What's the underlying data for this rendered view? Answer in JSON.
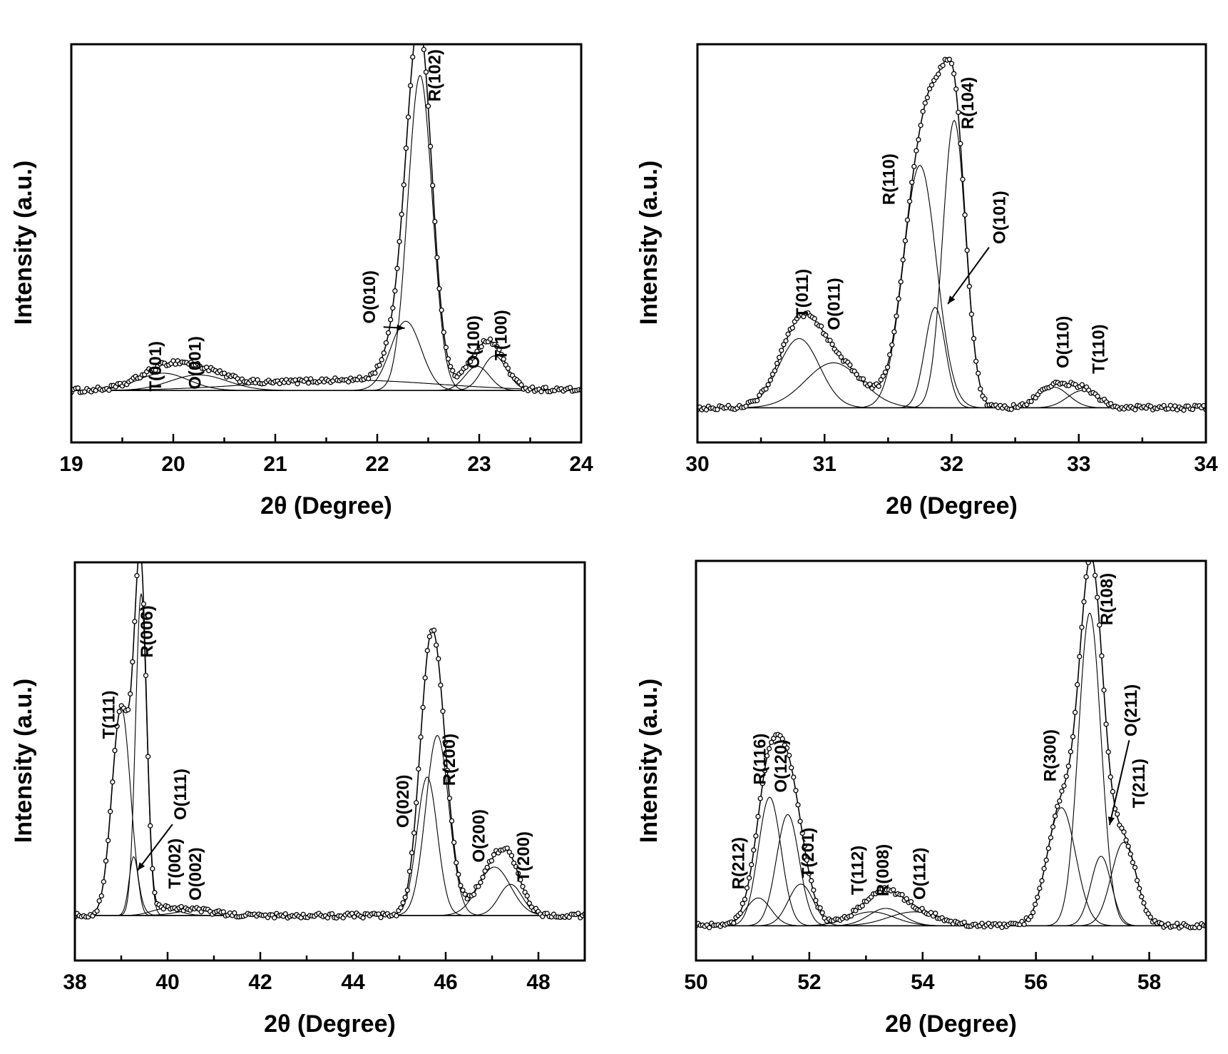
{
  "chart_data": [
    {
      "type": "line",
      "xlabel": "2θ (Degree)",
      "ylabel": "Intensity (a.u.)",
      "xlim": [
        19,
        24
      ],
      "xticks": [
        19,
        20,
        21,
        22,
        23,
        24
      ],
      "ylim": [
        0,
        1.15
      ],
      "baseline": 0.15,
      "series": [
        {
          "name": "",
          "role": "component",
          "values": [
            {
              "center": 19.9,
              "height": 0.05,
              "width": 0.25
            }
          ]
        },
        {
          "name": "",
          "role": "component",
          "values": [
            {
              "center": 20.25,
              "height": 0.045,
              "width": 0.28
            }
          ]
        },
        {
          "name": "",
          "role": "component",
          "values": [
            {
              "center": 22.28,
              "height": 0.2,
              "width": 0.15
            }
          ]
        },
        {
          "name": "",
          "role": "component",
          "values": [
            {
              "center": 22.42,
              "height": 0.91,
              "width": 0.12
            }
          ]
        },
        {
          "name": "",
          "role": "component",
          "values": [
            {
              "center": 22.98,
              "height": 0.07,
              "width": 0.12
            }
          ]
        },
        {
          "name": "",
          "role": "component",
          "values": [
            {
              "center": 23.15,
              "height": 0.1,
              "width": 0.12
            }
          ]
        },
        {
          "name": "",
          "role": "component",
          "values": [
            {
              "center": 21.7,
              "height": 0.03,
              "width": 0.9
            }
          ]
        }
      ],
      "annotations": [
        {
          "text": "T(001)",
          "x": 19.88,
          "y": 0.22
        },
        {
          "text": "O(001)",
          "x": 20.27,
          "y": 0.23
        },
        {
          "text": "O(010)",
          "x": 21.98,
          "y": 0.42,
          "arrow_to": [
            22.27,
            0.33
          ]
        },
        {
          "text": "R(102)",
          "x": 22.62,
          "y": 1.06
        },
        {
          "text": "O(100)",
          "x": 23.0,
          "y": 0.29
        },
        {
          "text": "T(100)",
          "x": 23.27,
          "y": 0.31
        }
      ]
    },
    {
      "type": "line",
      "xlabel": "2θ (Degree)",
      "ylabel": "Intensity (a.u.)",
      "xlim": [
        30,
        34
      ],
      "xticks": [
        30,
        31,
        32,
        33,
        34
      ],
      "ylim": [
        0,
        1.15
      ],
      "baseline": 0.1,
      "series": [
        {
          "name": "",
          "role": "component",
          "values": [
            {
              "center": 30.8,
              "height": 0.2,
              "width": 0.16
            }
          ]
        },
        {
          "name": "",
          "role": "component",
          "values": [
            {
              "center": 31.07,
              "height": 0.13,
              "width": 0.22
            }
          ]
        },
        {
          "name": "",
          "role": "component",
          "values": [
            {
              "center": 31.75,
              "height": 0.7,
              "width": 0.13
            }
          ]
        },
        {
          "name": "",
          "role": "component",
          "values": [
            {
              "center": 31.87,
              "height": 0.29,
              "width": 0.08
            }
          ]
        },
        {
          "name": "",
          "role": "component",
          "values": [
            {
              "center": 32.02,
              "height": 0.83,
              "width": 0.09
            }
          ]
        },
        {
          "name": "",
          "role": "component",
          "values": [
            {
              "center": 32.8,
              "height": 0.06,
              "width": 0.12
            }
          ]
        },
        {
          "name": "",
          "role": "component",
          "values": [
            {
              "center": 33.03,
              "height": 0.05,
              "width": 0.12
            }
          ]
        }
      ],
      "annotations": [
        {
          "text": "T(011)",
          "x": 30.87,
          "y": 0.43
        },
        {
          "text": "O(011)",
          "x": 31.12,
          "y": 0.4
        },
        {
          "text": "R(110)",
          "x": 31.55,
          "y": 0.76
        },
        {
          "text": "R(104)",
          "x": 32.17,
          "y": 0.98
        },
        {
          "text": "O(101)",
          "x": 32.42,
          "y": 0.65,
          "arrow_to": [
            31.97,
            0.4
          ]
        },
        {
          "text": "O(110)",
          "x": 32.92,
          "y": 0.29
        },
        {
          "text": "T(110)",
          "x": 33.2,
          "y": 0.27
        }
      ]
    },
    {
      "type": "line",
      "xlabel": "2θ (Degree)",
      "ylabel": "Intensity (a.u.)",
      "xlim": [
        38,
        49
      ],
      "xticks": [
        38,
        40,
        42,
        44,
        46,
        48
      ],
      "ylim": [
        0,
        1.15
      ],
      "baseline": 0.13,
      "series": [
        {
          "name": "",
          "role": "component",
          "values": [
            {
              "center": 39.0,
              "height": 0.6,
              "width": 0.2
            }
          ]
        },
        {
          "name": "",
          "role": "component",
          "values": [
            {
              "center": 39.27,
              "height": 0.17,
              "width": 0.1
            }
          ]
        },
        {
          "name": "",
          "role": "component",
          "values": [
            {
              "center": 39.43,
              "height": 0.93,
              "width": 0.12
            }
          ]
        },
        {
          "name": "",
          "role": "component",
          "values": [
            {
              "center": 39.95,
              "height": 0.02,
              "width": 0.3
            }
          ]
        },
        {
          "name": "",
          "role": "component",
          "values": [
            {
              "center": 40.6,
              "height": 0.015,
              "width": 0.4
            }
          ]
        },
        {
          "name": "",
          "role": "component",
          "values": [
            {
              "center": 45.6,
              "height": 0.4,
              "width": 0.22
            }
          ]
        },
        {
          "name": "",
          "role": "component",
          "values": [
            {
              "center": 45.82,
              "height": 0.52,
              "width": 0.25
            }
          ]
        },
        {
          "name": "",
          "role": "component",
          "values": [
            {
              "center": 47.05,
              "height": 0.14,
              "width": 0.35
            }
          ]
        },
        {
          "name": "",
          "role": "component",
          "values": [
            {
              "center": 47.4,
              "height": 0.09,
              "width": 0.25
            }
          ]
        }
      ],
      "annotations": [
        {
          "text": "T(111)",
          "x": 38.85,
          "y": 0.71
        },
        {
          "text": "R(006)",
          "x": 39.68,
          "y": 0.95
        },
        {
          "text": "O(111)",
          "x": 40.4,
          "y": 0.48,
          "arrow_to": [
            39.35,
            0.26
          ]
        },
        {
          "text": "T(002)",
          "x": 40.28,
          "y": 0.28
        },
        {
          "text": "O(002)",
          "x": 40.72,
          "y": 0.25
        },
        {
          "text": "O(020)",
          "x": 45.2,
          "y": 0.46
        },
        {
          "text": "R(200)",
          "x": 46.2,
          "y": 0.58
        },
        {
          "text": "O(200)",
          "x": 46.84,
          "y": 0.36
        },
        {
          "text": "T(200)",
          "x": 47.8,
          "y": 0.3
        }
      ]
    },
    {
      "type": "line",
      "xlabel": "2θ (Degree)",
      "ylabel": "Intensity (a.u.)",
      "xlim": [
        50,
        59
      ],
      "xticks": [
        50,
        52,
        54,
        56,
        58
      ],
      "ylim": [
        0,
        1.15
      ],
      "baseline": 0.1,
      "series": [
        {
          "name": "",
          "role": "component",
          "values": [
            {
              "center": 51.1,
              "height": 0.08,
              "width": 0.22
            }
          ]
        },
        {
          "name": "",
          "role": "component",
          "values": [
            {
              "center": 51.3,
              "height": 0.37,
              "width": 0.2
            }
          ]
        },
        {
          "name": "",
          "role": "component",
          "values": [
            {
              "center": 51.62,
              "height": 0.32,
              "width": 0.2
            }
          ]
        },
        {
          "name": "",
          "role": "component",
          "values": [
            {
              "center": 51.85,
              "height": 0.12,
              "width": 0.22
            }
          ]
        },
        {
          "name": "",
          "role": "component",
          "values": [
            {
              "center": 53.1,
              "height": 0.04,
              "width": 0.4
            }
          ]
        },
        {
          "name": "",
          "role": "component",
          "values": [
            {
              "center": 53.35,
              "height": 0.05,
              "width": 0.3
            }
          ]
        },
        {
          "name": "",
          "role": "component",
          "values": [
            {
              "center": 53.85,
              "height": 0.04,
              "width": 0.45
            }
          ]
        },
        {
          "name": "",
          "role": "component",
          "values": [
            {
              "center": 56.45,
              "height": 0.34,
              "width": 0.25
            }
          ]
        },
        {
          "name": "",
          "role": "component",
          "values": [
            {
              "center": 56.95,
              "height": 0.9,
              "width": 0.2
            }
          ]
        },
        {
          "name": "",
          "role": "component",
          "values": [
            {
              "center": 57.15,
              "height": 0.2,
              "width": 0.18
            }
          ]
        },
        {
          "name": "",
          "role": "component",
          "values": [
            {
              "center": 57.55,
              "height": 0.24,
              "width": 0.22
            }
          ]
        }
      ],
      "annotations": [
        {
          "text": "R(212)",
          "x": 50.85,
          "y": 0.28
        },
        {
          "text": "R(116)",
          "x": 51.23,
          "y": 0.58
        },
        {
          "text": "O(120)",
          "x": 51.6,
          "y": 0.56
        },
        {
          "text": "T(201)",
          "x": 52.08,
          "y": 0.31
        },
        {
          "text": "T(112)",
          "x": 52.95,
          "y": 0.26
        },
        {
          "text": "R(008)",
          "x": 53.4,
          "y": 0.26
        },
        {
          "text": "O(112)",
          "x": 54.05,
          "y": 0.25
        },
        {
          "text": "R(300)",
          "x": 56.35,
          "y": 0.59
        },
        {
          "text": "R(108)",
          "x": 57.35,
          "y": 1.04
        },
        {
          "text": "O(211)",
          "x": 57.78,
          "y": 0.72,
          "arrow_to": [
            57.3,
            0.39
          ]
        },
        {
          "text": "T(211)",
          "x": 57.92,
          "y": 0.51
        }
      ]
    }
  ]
}
